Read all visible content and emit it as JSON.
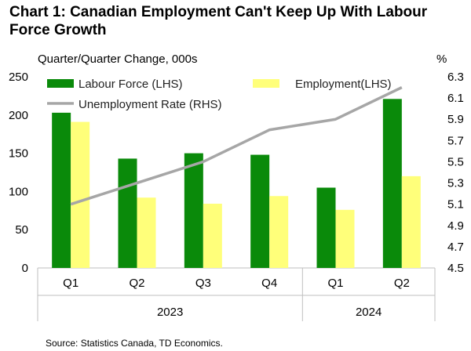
{
  "chart_data": {
    "type": "bar",
    "title": "Chart 1: Canadian Employment Can't Keep Up With Labour Force Growth",
    "ylabel": "Quarter/Quarter Change, 000s",
    "y2label": "%",
    "categories": [
      "Q1",
      "Q2",
      "Q3",
      "Q4",
      "Q1",
      "Q2"
    ],
    "groups": [
      {
        "label": "2023",
        "span": 4
      },
      {
        "label": "2024",
        "span": 2
      }
    ],
    "ylim": [
      0,
      250
    ],
    "yticks": [
      0,
      50,
      100,
      150,
      200,
      250
    ],
    "y2lim": [
      4.5,
      6.3
    ],
    "y2ticks": [
      "4.5",
      "4.7",
      "4.9",
      "5.1",
      "5.3",
      "5.5",
      "5.7",
      "5.9",
      "6.1",
      "6.3"
    ],
    "series": [
      {
        "name": "Labour Force (LHS)",
        "type": "bar",
        "axis": "left",
        "color": "#0a8a0a",
        "values": [
          203,
          143,
          150,
          148,
          105,
          221
        ]
      },
      {
        "name": "Employment(LHS)",
        "type": "bar",
        "axis": "left",
        "color": "#ffff7a",
        "values": [
          191,
          92,
          84,
          94,
          76,
          120
        ]
      },
      {
        "name": "Unemployment Rate (RHS)",
        "type": "line",
        "axis": "right",
        "color": "#a6a6a6",
        "values": [
          5.1,
          5.3,
          5.5,
          5.8,
          5.9,
          6.2
        ]
      }
    ],
    "source": "Source: Statistics Canada, TD Economics."
  }
}
